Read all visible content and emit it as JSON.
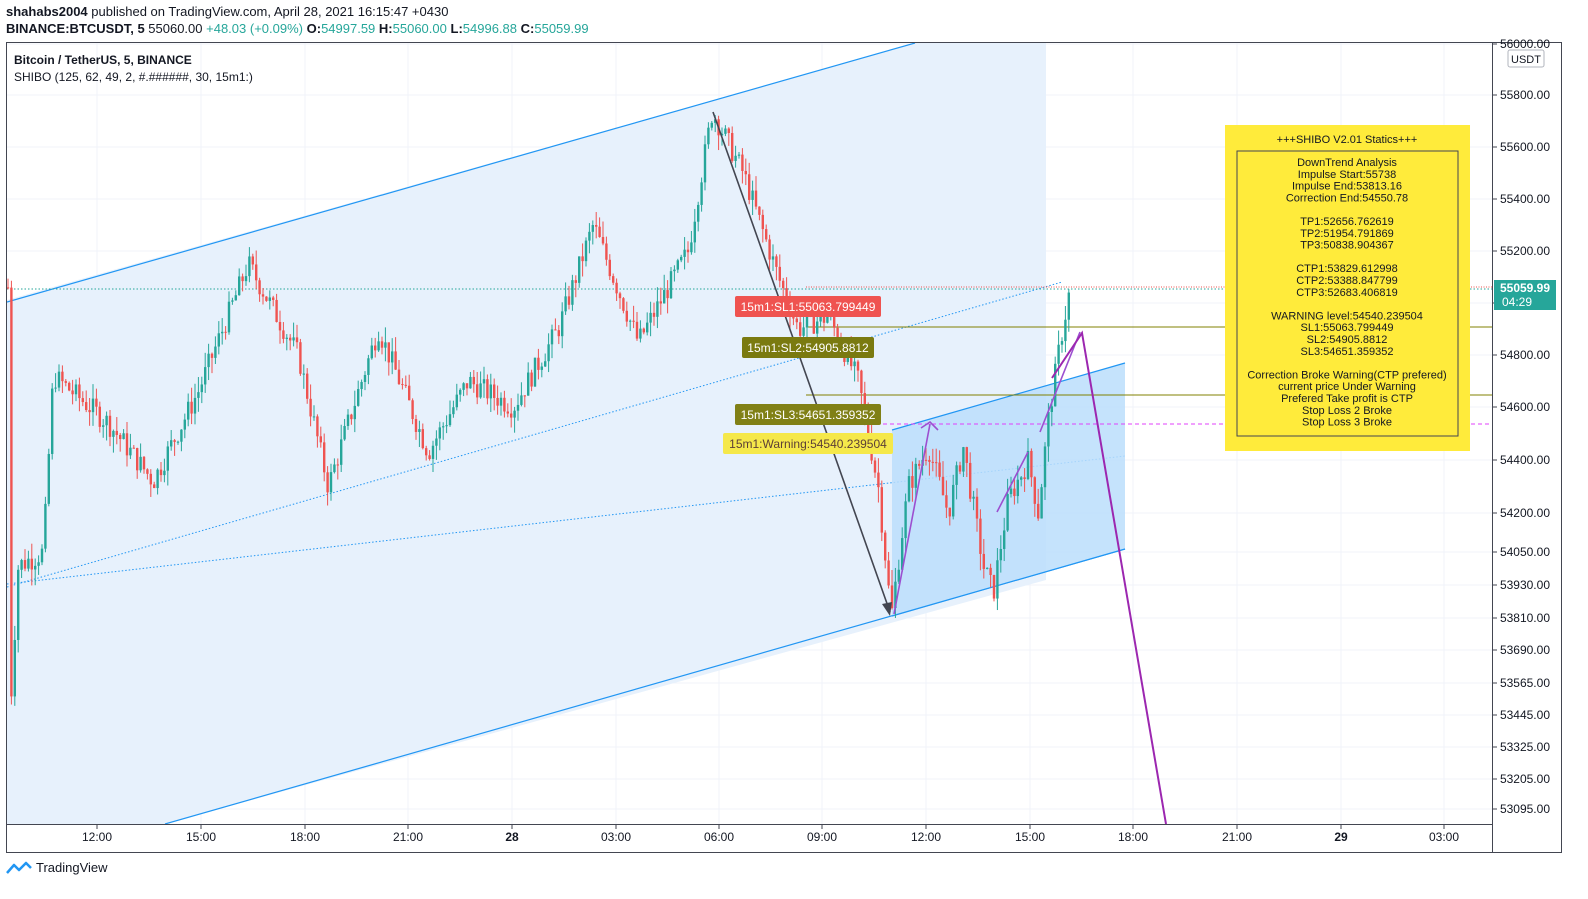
{
  "header": {
    "author": "shahabs2004",
    "published": " published on TradingView.com, April 28, 2021 16:15:47 +0430",
    "symbol": "BINANCE:BTCUSDT, 5",
    "price": " 55060.00 ",
    "change": "+48.03 (+0.09%)",
    "o_label": "O:",
    "o_val": "54997.59",
    "h_label": "H:",
    "h_val": "55060.00",
    "l_label": "L:",
    "l_val": "54996.88",
    "c_label": "C:",
    "c_val": "55059.99"
  },
  "legend": {
    "title": "Bitcoin / TetherUS, 5, BINANCE",
    "indicator": "SHIBO (125, 62, 49, 2, #.######, 30, 15m1:)"
  },
  "currency": "USDT",
  "last_price": {
    "value": "55059.99",
    "countdown": "04:29"
  },
  "footer": {
    "brand": "TradingView"
  },
  "chart_data": {
    "type": "candlestick",
    "y_ticks": [
      "56000.00",
      "55800.00",
      "55600.00",
      "55400.00",
      "55200.00",
      "55000.00",
      "54800.00",
      "54600.00",
      "54400.00",
      "54200.00",
      "54050.00",
      "53930.00",
      "53810.00",
      "53690.00",
      "53565.00",
      "53445.00",
      "53325.00",
      "53205.00",
      "53095.00"
    ],
    "x_ticks": [
      "12:00",
      "15:00",
      "18:00",
      "21:00",
      "28",
      "03:00",
      "06:00",
      "09:00",
      "12:00",
      "15:00",
      "18:00",
      "21:00",
      "29",
      "03:00"
    ],
    "key_points": {
      "impulse_start": 55738,
      "impulse_end": 53813.16,
      "correction_end": 54550.78,
      "last": 55059.99
    },
    "labels": [
      {
        "text": "15m1:SL1:55063.799449",
        "color": "#ef5350"
      },
      {
        "text": "15m1:SL2:54905.8812",
        "color": "#7a7a10"
      },
      {
        "text": "15m1:SL3:54651.359352",
        "color": "#808016"
      },
      {
        "text": "15m1:Warning:54540.239504",
        "color": "#f5e84a"
      }
    ],
    "stats_box": {
      "title": "+++SHIBO V2.01 Statics+++",
      "lines": [
        "DownTrend Analysis",
        "Impulse Start:55738",
        "Impulse End:53813.16",
        "Correction End:54550.78",
        "",
        "TP1:52656.762619",
        "TP2:51954.791869",
        "TP3:50838.904367",
        "",
        "CTP1:53829.612998",
        "CTP2:53388.847799",
        "CTP3:52683.406819",
        "",
        "WARNING level:54540.239504",
        "SL1:55063.799449",
        "SL2:54905.8812",
        "SL3:54651.359352",
        "",
        "Correction Broke Warning(CTP prefered)",
        "current price Under Warning",
        "Prefered Take profit is CTP",
        "Stop Loss 2 Broke",
        "Stop Loss 3 Broke"
      ]
    },
    "colors": {
      "up": "#26a69a",
      "down": "#ef5350",
      "channel": "#2196f3",
      "arrow": "#434651",
      "projection": "#9c27b0"
    }
  }
}
